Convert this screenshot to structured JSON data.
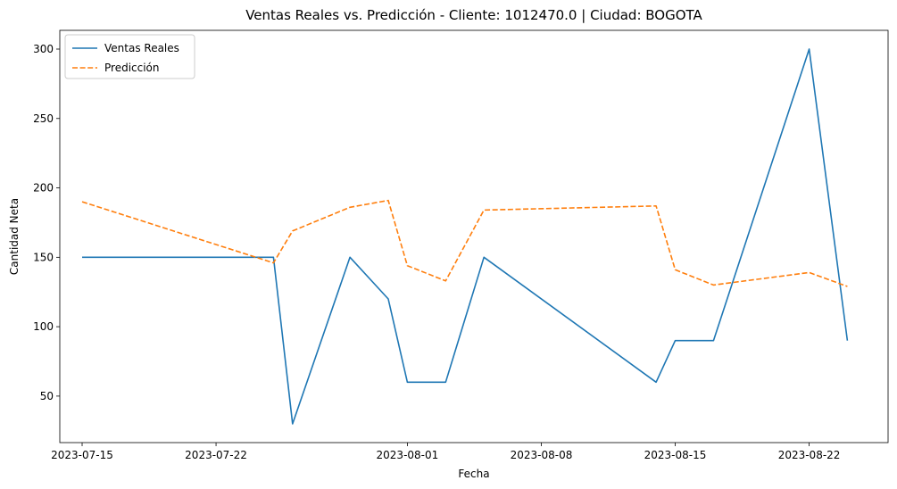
{
  "chart_data": {
    "type": "line",
    "title": "Ventas Reales vs. Predicción - Cliente: 1012470.0 | Ciudad: BOGOTA",
    "xlabel": "Fecha",
    "ylabel": "Cantidad Neta",
    "x_is_date": true,
    "xlim": [
      "2023-07-13T20:00",
      "2023-08-26T03:00"
    ],
    "ylim": [
      16.5,
      313.5
    ],
    "xticks": [
      "2023-07-15",
      "2023-07-22",
      "2023-08-01",
      "2023-08-08",
      "2023-08-15",
      "2023-08-22"
    ],
    "yticks": [
      50,
      100,
      150,
      200,
      250,
      300
    ],
    "legend_position": "upper-left",
    "grid": false,
    "series": [
      {
        "name": "Ventas Reales",
        "color": "#1f77b4",
        "style": "solid",
        "points": [
          {
            "x": "2023-07-15",
            "y": 150
          },
          {
            "x": "2023-07-25",
            "y": 150
          },
          {
            "x": "2023-07-26",
            "y": 30
          },
          {
            "x": "2023-07-29",
            "y": 150
          },
          {
            "x": "2023-07-31",
            "y": 120
          },
          {
            "x": "2023-08-01",
            "y": 60
          },
          {
            "x": "2023-08-03",
            "y": 60
          },
          {
            "x": "2023-08-05",
            "y": 150
          },
          {
            "x": "2023-08-14",
            "y": 60
          },
          {
            "x": "2023-08-15",
            "y": 90
          },
          {
            "x": "2023-08-17",
            "y": 90
          },
          {
            "x": "2023-08-22",
            "y": 300
          },
          {
            "x": "2023-08-24",
            "y": 90
          }
        ]
      },
      {
        "name": "Predicción",
        "color": "#ff7f0e",
        "style": "dashed",
        "points": [
          {
            "x": "2023-07-15",
            "y": 190
          },
          {
            "x": "2023-07-25",
            "y": 146
          },
          {
            "x": "2023-07-26",
            "y": 169
          },
          {
            "x": "2023-07-29",
            "y": 186
          },
          {
            "x": "2023-07-31",
            "y": 191
          },
          {
            "x": "2023-08-01",
            "y": 144
          },
          {
            "x": "2023-08-03",
            "y": 133
          },
          {
            "x": "2023-08-05",
            "y": 184
          },
          {
            "x": "2023-08-14",
            "y": 187
          },
          {
            "x": "2023-08-15",
            "y": 141
          },
          {
            "x": "2023-08-17",
            "y": 130
          },
          {
            "x": "2023-08-22",
            "y": 139
          },
          {
            "x": "2023-08-24",
            "y": 129
          }
        ]
      }
    ]
  }
}
